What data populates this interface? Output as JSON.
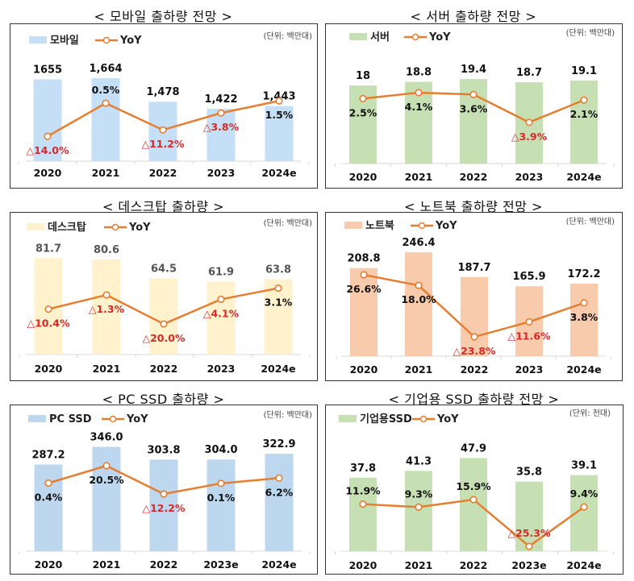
{
  "chart_data": [
    {
      "id": "mobile",
      "type": "bar+line",
      "title": "< 모바일 출하량 전망 >",
      "unit_label": "(단위: 백만대)",
      "legend": {
        "bar": "모바일",
        "line": "YoY",
        "placement": "top-left"
      },
      "categories": [
        "2020",
        "2021",
        "2022",
        "2023",
        "2024e"
      ],
      "series": [
        {
          "name": "모바일",
          "kind": "bar",
          "values": [
            1655,
            1664,
            1478,
            1422,
            1443
          ],
          "labels": [
            "1655",
            "1,664",
            "1,478",
            "1,422",
            "1,443"
          ],
          "color": "#c5dff7"
        },
        {
          "name": "YoY",
          "kind": "line",
          "unit": "%",
          "values": [
            -14.0,
            0.5,
            -11.2,
            -3.8,
            1.5
          ],
          "labels": [
            "△14.0%",
            "0.5%",
            "△11.2%",
            "△3.8%",
            "1.5%"
          ],
          "label_side": [
            "below",
            "above",
            "below",
            "below",
            "below"
          ],
          "color": "#e67e32"
        }
      ],
      "ylim": [
        1008,
        1836
      ],
      "yoy_lim": [
        -24.9,
        21.0
      ],
      "grid": false
    },
    {
      "id": "server",
      "type": "bar+line",
      "title": "< 서버 출하량 전망 >",
      "unit_label": "(단위: 백만대)",
      "legend": {
        "bar": "서버",
        "line": "YoY",
        "placement": "top-left"
      },
      "categories": [
        "2020",
        "2021",
        "2022",
        "2023",
        "2024e"
      ],
      "series": [
        {
          "name": "서버",
          "kind": "bar",
          "values": [
            18,
            18.8,
            19.4,
            18.7,
            19.1
          ],
          "labels": [
            "18",
            "18.8",
            "19.4",
            "18.7",
            "19.1"
          ],
          "color": "#c6e0b4"
        },
        {
          "name": "YoY",
          "kind": "line",
          "unit": "%",
          "values": [
            2.5,
            4.1,
            3.6,
            -3.9,
            2.1
          ],
          "labels": [
            "2.5%",
            "4.1%",
            "3.6%",
            "△3.9%",
            "2.1%"
          ],
          "label_side": [
            "below",
            "below",
            "below",
            "below",
            "below"
          ],
          "color": "#e67e32"
        }
      ],
      "ylim": [
        1.0,
        23.8
      ],
      "yoy_lim": [
        -15.0,
        13.2
      ],
      "grid": false
    },
    {
      "id": "desktop",
      "type": "bar+line",
      "title": "< 데스크탑 출하량 >",
      "unit_label": "(단위: 백만대)",
      "legend": {
        "bar": "데스크탑",
        "line": "YoY",
        "placement": "top-left"
      },
      "categories": [
        "2020",
        "2021",
        "2022",
        "2023",
        "2024e"
      ],
      "series": [
        {
          "name": "데스크탑",
          "kind": "bar",
          "values": [
            81.7,
            80.6,
            64.5,
            61.9,
            63.8
          ],
          "labels": [
            "81.7",
            "80.6",
            "64.5",
            "61.9",
            "63.8"
          ],
          "color": "#fff2cc",
          "label_color": "gray"
        },
        {
          "name": "YoY",
          "kind": "line",
          "unit": "%",
          "values": [
            -10.4,
            -1.3,
            -20.0,
            -4.1,
            3.1
          ],
          "labels": [
            "△10.4%",
            "△1.3%",
            "△20.0%",
            "△4.1%",
            "3.1%"
          ],
          "label_side": [
            "below",
            "below",
            "below",
            "below",
            "below"
          ],
          "color": "#e67e32"
        }
      ],
      "ylim": [
        0,
        88.7
      ],
      "yoy_lim": [
        -39.7,
        27.8
      ],
      "grid": false
    },
    {
      "id": "laptop",
      "type": "bar+line",
      "title": "< 노트북 출하량 전망 >",
      "unit_label": "(단위: 백만대)",
      "legend": {
        "bar": "노트북",
        "line": "YoY",
        "placement": "top-left"
      },
      "categories": [
        "2020",
        "2021",
        "2022",
        "2023",
        "2024e"
      ],
      "series": [
        {
          "name": "노트북",
          "kind": "bar",
          "values": [
            208.8,
            246.4,
            187.7,
            165.9,
            172.2
          ],
          "labels": [
            "208.8",
            "246.4",
            "187.7",
            "165.9",
            "172.2"
          ],
          "color": "#f8cbad"
        },
        {
          "name": "YoY",
          "kind": "line",
          "unit": "%",
          "values": [
            26.6,
            18.0,
            -23.8,
            -11.6,
            3.8
          ],
          "labels": [
            "26.6%",
            "18.0%",
            "△23.8%",
            "△11.6%",
            "3.8%"
          ],
          "label_side": [
            "below",
            "below",
            "below",
            "below",
            "below"
          ],
          "color": "#e67e32"
        }
      ],
      "ylim": [
        0,
        258
      ],
      "yoy_lim": [
        -39.5,
        48.9
      ],
      "grid": false
    },
    {
      "id": "pc-ssd",
      "type": "bar+line",
      "title": "< PC SSD 출하량 >",
      "unit_label": "(단위: 백만대)",
      "legend": {
        "bar": "PC SSD",
        "line": "YoY",
        "placement": "top-left"
      },
      "categories": [
        "2020",
        "2021",
        "2022",
        "2023e",
        "2024e"
      ],
      "series": [
        {
          "name": "PC SSD",
          "kind": "bar",
          "values": [
            287.2,
            346.0,
            303.8,
            304.0,
            322.9
          ],
          "labels": [
            "287.2",
            "346.0",
            "303.8",
            "304.0",
            "322.9"
          ],
          "color": "#bdd7ee"
        },
        {
          "name": "YoY",
          "kind": "line",
          "unit": "%",
          "values": [
            0.4,
            20.5,
            -12.2,
            0.1,
            6.2
          ],
          "labels": [
            "0.4%",
            "20.5%",
            "△12.2%",
            "0.1%",
            "6.2%"
          ],
          "label_side": [
            "below",
            "below",
            "below",
            "below",
            "below"
          ],
          "color": "#e67e32"
        }
      ],
      "ylim": [
        0,
        374
      ],
      "yoy_lim": [
        -78.6,
        52.3
      ],
      "grid": false
    },
    {
      "id": "enterprise-ssd",
      "type": "bar+line",
      "title": "< 기업용 SSD 출하량 전망 >",
      "unit_label": "(단위: 천대)",
      "legend": {
        "bar": "기업용SSD",
        "line": "YoY",
        "placement": "top-left"
      },
      "categories": [
        "2020",
        "2021",
        "2022",
        "2023e",
        "2024e"
      ],
      "series": [
        {
          "name": "기업용SSD",
          "kind": "bar",
          "values": [
            37.8,
            41.3,
            47.9,
            35.8,
            39.1
          ],
          "labels": [
            "37.8",
            "41.3",
            "47.9",
            "35.8",
            "39.1"
          ],
          "color": "#c6e0b4"
        },
        {
          "name": "YoY",
          "kind": "line",
          "unit": "%",
          "values": [
            11.9,
            9.3,
            15.9,
            -25.3,
            9.4
          ],
          "labels": [
            "11.9%",
            "9.3%",
            "15.9%",
            "△25.3%",
            "9.4%"
          ],
          "label_side": [
            "above",
            "above",
            "above",
            "above",
            "above"
          ],
          "color": "#e67e32"
        }
      ],
      "ylim": [
        0,
        58
      ],
      "yoy_lim": [
        -29.6,
        69.9
      ],
      "grid": false
    }
  ]
}
